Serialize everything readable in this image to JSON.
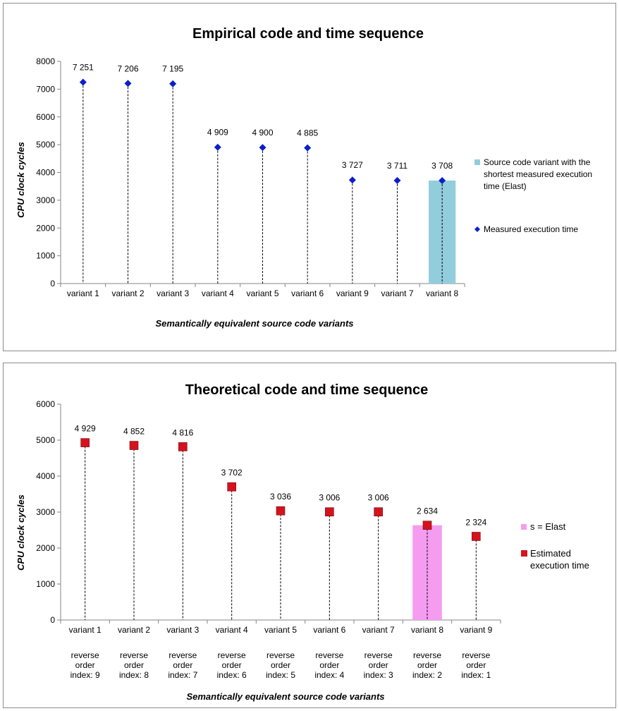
{
  "chart_data": [
    {
      "type": "bar",
      "title": "Empirical code and time sequence",
      "ylabel": "CPU clock cycles",
      "xlabel": "Semantically equivalent source code variants",
      "ylim": [
        0,
        8000
      ],
      "yticks": [
        "0",
        "1000",
        "2000",
        "3000",
        "4000",
        "5000",
        "6000",
        "7000",
        "8000"
      ],
      "categories": [
        "variant 1",
        "variant 2",
        "variant 3",
        "variant 4",
        "variant 5",
        "variant 6",
        "variant 9",
        "variant 7",
        "variant 8"
      ],
      "series": [
        {
          "name": "Source code variant with the shortest measured execution time  (Elast)",
          "kind": "bar",
          "color": "#92cddc",
          "values": [
            null,
            null,
            null,
            null,
            null,
            null,
            null,
            null,
            3708
          ]
        },
        {
          "name": "Measured execution time",
          "kind": "marker",
          "marker": "diamond",
          "color": "#0a1fcc",
          "values": [
            7251,
            7206,
            7195,
            4909,
            4900,
            4885,
            3727,
            3711,
            3708
          ]
        }
      ],
      "data_labels": [
        "7 251",
        "7 206",
        "7 195",
        "4 909",
        "4 900",
        "4 885",
        "3 727",
        "3 711",
        "3 708"
      ],
      "legend": [
        "Source code variant with the shortest measured execution time  (Elast)",
        "Measured execution time"
      ],
      "legend_lines": [
        [
          "Source code variant with the",
          "shortest measured execution",
          "time  (Elast)"
        ],
        [
          "Measured execution time"
        ]
      ],
      "legend_position": "right",
      "grid": false
    },
    {
      "type": "bar",
      "title": "Theoretical code and time sequence",
      "ylabel": "CPU clock cycles",
      "xlabel": "Semantically equivalent source code variants",
      "ylim": [
        0,
        6000
      ],
      "yticks": [
        "0",
        "1000",
        "2000",
        "3000",
        "4000",
        "5000",
        "6000"
      ],
      "categories": [
        "variant 1",
        "variant 2",
        "variant 3",
        "variant 4",
        "variant 5",
        "variant 6",
        "variant 7",
        "variant 8",
        "variant 9"
      ],
      "sub_categories": [
        "reverse order index: 9",
        "reverse order index: 8",
        "reverse order index: 7",
        "reverse order index: 6",
        "reverse order index: 5",
        "reverse order index: 4",
        "reverse order index: 3",
        "reverse order index: 2",
        "reverse order index: 1"
      ],
      "series": [
        {
          "name": "s = Elast",
          "kind": "bar",
          "color": "#f59cf0",
          "values": [
            null,
            null,
            null,
            null,
            null,
            null,
            null,
            2634,
            null
          ]
        },
        {
          "name": "Estimated execution time",
          "kind": "marker",
          "marker": "square",
          "color": "#d4131e",
          "values": [
            4929,
            4852,
            4816,
            3702,
            3036,
            3006,
            3006,
            2634,
            2324
          ]
        }
      ],
      "data_labels": [
        "4 929",
        "4 852",
        "4 816",
        "3 702",
        "3 036",
        "3 006",
        "3 006",
        "2 634",
        "2 324"
      ],
      "legend": [
        "s = Elast",
        "Estimated execution time"
      ],
      "legend_lines": [
        [
          "s = Elast"
        ],
        [
          "Estimated",
          "execution time"
        ]
      ],
      "legend_position": "right",
      "grid": false
    }
  ]
}
